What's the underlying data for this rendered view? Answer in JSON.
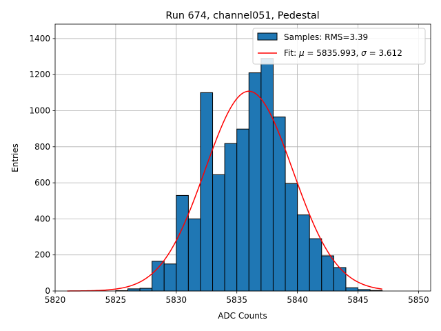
{
  "chart_data": {
    "type": "bar",
    "title": "Run 674, channel051, Pedestal",
    "xlabel": "ADC Counts",
    "ylabel": "Entries",
    "xlim": [
      5820,
      5851
    ],
    "ylim": [
      0,
      1480
    ],
    "xticks": [
      5820,
      5825,
      5830,
      5835,
      5840,
      5845,
      5850
    ],
    "yticks": [
      0,
      200,
      400,
      600,
      800,
      1000,
      1200,
      1400
    ],
    "grid": true,
    "legend_position": "top-right",
    "bin_width": 1,
    "histogram": {
      "name": "Samples: RMS=3.39",
      "color": "#1f77b4",
      "edge_color": "#000000",
      "bin_starts": [
        5825,
        5826,
        5827,
        5828,
        5829,
        5830,
        5831,
        5832,
        5833,
        5834,
        5835,
        5836,
        5837,
        5838,
        5839,
        5840,
        5841,
        5842,
        5843,
        5844,
        5845,
        5846
      ],
      "counts": [
        2,
        12,
        15,
        165,
        150,
        530,
        400,
        1100,
        645,
        818,
        898,
        1210,
        1290,
        965,
        595,
        422,
        290,
        195,
        130,
        18,
        8,
        3
      ]
    },
    "fit": {
      "legend_prefix": "Fit: ",
      "mu_text": "5835.993",
      "sigma_text": "3.612",
      "mu": 5835.993,
      "sigma": 3.612,
      "amplitude": 1108,
      "x_range": [
        5821,
        5847
      ],
      "color": "#ff0000"
    }
  }
}
